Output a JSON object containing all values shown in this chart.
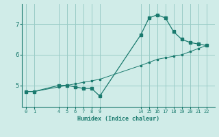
{
  "background_color": "#d0ece8",
  "grid_color": "#9accc6",
  "line_color": "#1a7a6e",
  "xlabel": "Humidex (Indice chaleur)",
  "curve1_x": [
    0,
    1,
    4,
    5,
    6,
    7,
    8,
    9,
    14,
    15,
    16,
    17,
    18,
    19,
    20,
    21,
    22
  ],
  "curve1_y": [
    4.8,
    4.8,
    5.0,
    5.0,
    4.95,
    4.9,
    4.9,
    4.65,
    6.65,
    7.2,
    7.3,
    7.2,
    6.75,
    6.5,
    6.4,
    6.35,
    6.3
  ],
  "curve2_x": [
    0,
    1,
    4,
    5,
    6,
    7,
    8,
    9,
    14,
    15,
    16,
    17,
    18,
    19,
    20,
    21,
    22
  ],
  "curve2_y": [
    4.8,
    4.8,
    4.95,
    5.0,
    5.05,
    5.1,
    5.15,
    5.2,
    5.65,
    5.75,
    5.85,
    5.9,
    5.95,
    6.0,
    6.1,
    6.2,
    6.3
  ],
  "xticks": [
    0,
    1,
    4,
    5,
    6,
    7,
    8,
    9,
    14,
    15,
    16,
    17,
    18,
    19,
    20,
    21,
    22
  ],
  "yticks": [
    5,
    6,
    7
  ],
  "ylim": [
    4.3,
    7.65
  ],
  "xlim": [
    -0.5,
    23.0
  ]
}
